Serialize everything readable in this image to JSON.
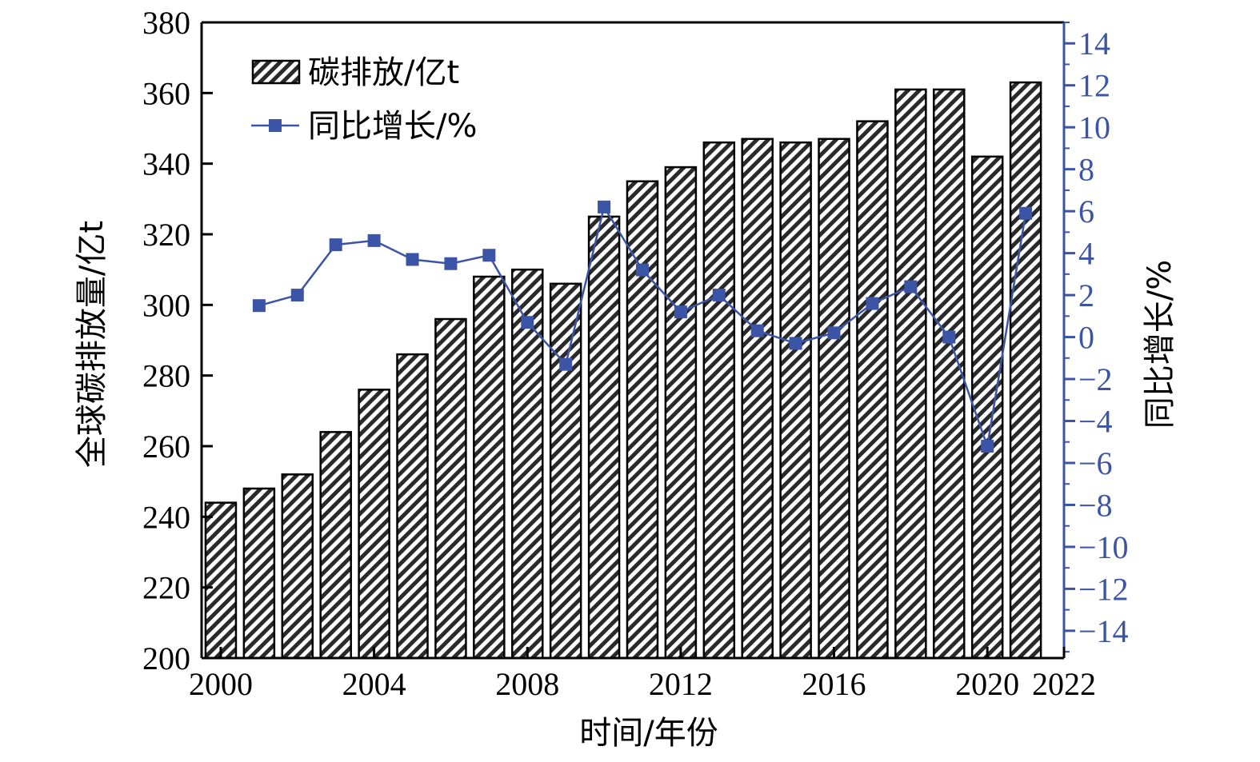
{
  "chart_data": {
    "type": "bar+line",
    "x": [
      2000,
      2001,
      2002,
      2003,
      2004,
      2005,
      2006,
      2007,
      2008,
      2009,
      2010,
      2011,
      2012,
      2013,
      2014,
      2015,
      2016,
      2017,
      2018,
      2019,
      2020,
      2021
    ],
    "series": [
      {
        "name": "碳排放/亿t",
        "type": "bar",
        "axis": "left",
        "values": [
          244,
          248,
          252,
          264,
          276,
          286,
          296,
          308,
          310,
          306,
          325,
          335,
          339,
          346,
          347,
          346,
          347,
          352,
          361,
          361,
          342,
          363
        ]
      },
      {
        "name": "同比增长/%",
        "type": "line",
        "axis": "right",
        "x": [
          2001,
          2002,
          2003,
          2004,
          2005,
          2006,
          2007,
          2008,
          2009,
          2010,
          2011,
          2012,
          2013,
          2014,
          2015,
          2016,
          2017,
          2018,
          2019,
          2020,
          2021
        ],
        "values": [
          1.5,
          2.0,
          4.4,
          4.6,
          3.7,
          3.5,
          3.9,
          0.7,
          -1.3,
          6.2,
          3.2,
          1.2,
          2.0,
          0.3,
          -0.3,
          0.2,
          1.6,
          2.4,
          0.0,
          -5.2,
          5.9
        ]
      }
    ],
    "xlabel": "时间/年份",
    "ylabel": "全球碳排放量/亿t",
    "y2label": "同比增长/%",
    "xlim": [
      1999.5,
      2022
    ],
    "xticks": [
      "2000",
      "2004",
      "2008",
      "2012",
      "2016",
      "2020",
      "2022"
    ],
    "ylim": [
      200,
      380
    ],
    "yticks": [
      "200",
      "220",
      "240",
      "260",
      "280",
      "300",
      "320",
      "340",
      "360",
      "380"
    ],
    "y2lim": [
      -15.3,
      15
    ],
    "y2ticks": [
      "−14",
      "−12",
      "−10",
      "−8",
      "−6",
      "−4",
      "−2",
      "0",
      "2",
      "4",
      "6",
      "8",
      "10",
      "12",
      "14"
    ],
    "legend_position": "top-left",
    "grid": false,
    "colors": {
      "bar_fill": "#2a2a2a",
      "bar_hatch_bg": "#ffffff",
      "line": "#3b54a5",
      "right_axis": "#3b54a5",
      "axis": "#000000"
    }
  }
}
